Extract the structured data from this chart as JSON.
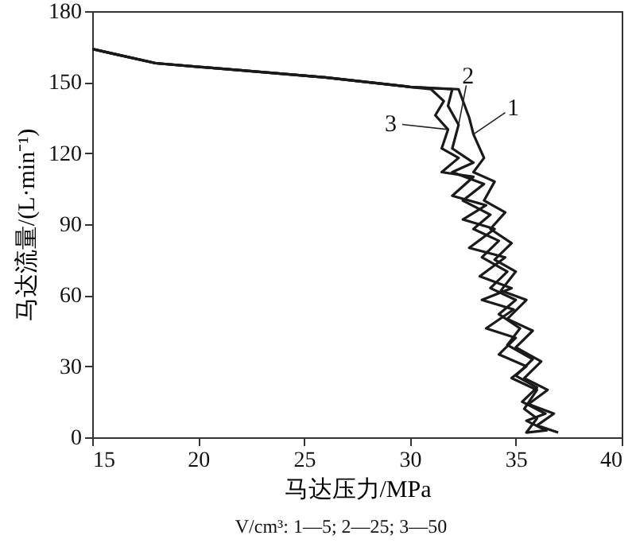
{
  "chart_data": {
    "type": "line",
    "xlabel": "马达压力/MPa",
    "ylabel": "马达流量/(L·min⁻¹)",
    "xlim": [
      15,
      40
    ],
    "xticks": [
      15,
      20,
      25,
      30,
      35,
      40
    ],
    "ylim": [
      0,
      180
    ],
    "yticks": [
      0,
      30,
      60,
      90,
      120,
      150,
      180
    ],
    "grid": false,
    "marker": "none",
    "line_style": "solid",
    "annotations": [
      "V/cm³: 1—5; 2—25; 3—50"
    ],
    "series": [
      {
        "name": "1",
        "color": "#1a1a1a",
        "x": [
          15,
          16,
          18,
          22,
          26,
          30,
          32.3,
          32.8,
          33,
          33.5,
          33,
          34,
          33.5,
          34.5,
          33.8,
          34.8,
          34,
          35,
          34.3,
          35.5,
          34.6,
          35.8,
          35,
          36.2,
          35.4,
          36.5,
          35.6,
          36.8,
          36,
          37
        ],
        "values": [
          164,
          162,
          158,
          155,
          152,
          148,
          147,
          135,
          128,
          118,
          112,
          108,
          100,
          95,
          88,
          82,
          75,
          70,
          62,
          58,
          50,
          45,
          38,
          32,
          25,
          20,
          14,
          10,
          5,
          2
        ]
      },
      {
        "name": "2",
        "color": "#1a1a1a",
        "x": [
          15,
          16,
          18,
          22,
          26,
          30,
          32,
          31.8,
          32.3,
          32,
          33,
          32,
          33.5,
          32.5,
          33.8,
          33,
          34.2,
          33.4,
          34.6,
          33.8,
          35,
          34.2,
          35.2,
          34.6,
          35.8,
          35,
          36,
          35.3,
          36.4,
          35.5,
          36.4
        ],
        "values": [
          164,
          162,
          158,
          155,
          152,
          148,
          147,
          140,
          132,
          122,
          116,
          112,
          107,
          100,
          94,
          88,
          83,
          76,
          70,
          63,
          58,
          52,
          46,
          39,
          33,
          26,
          21,
          15,
          10,
          7,
          3
        ]
      },
      {
        "name": "3",
        "color": "#1a1a1a",
        "x": [
          15,
          16,
          18,
          22,
          26,
          30,
          31,
          31.6,
          31.2,
          31.8,
          31.5,
          32.3,
          31.5,
          33,
          32,
          33.6,
          32.5,
          34,
          32.8,
          34.5,
          33.3,
          34.8,
          33.4,
          34.9,
          33.6,
          35,
          34.2,
          35.5,
          34.8,
          36,
          35.4,
          36,
          35.5,
          36.5
        ],
        "values": [
          164,
          162,
          158,
          155,
          152,
          148,
          147,
          142,
          136,
          130,
          122,
          118,
          112,
          110,
          102,
          98,
          92,
          88,
          80,
          76,
          68,
          63,
          58,
          54,
          46,
          42,
          35,
          30,
          25,
          20,
          12,
          8,
          2,
          3
        ]
      }
    ]
  }
}
